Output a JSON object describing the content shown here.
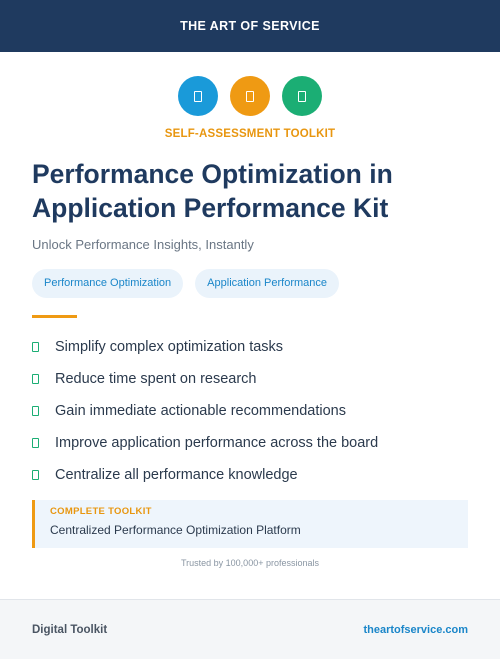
{
  "header": {
    "brand": "THE ART OF SERVICE"
  },
  "icons": [
    {
      "name": "document-icon",
      "color": "#1a9ad9"
    },
    {
      "name": "document-icon",
      "color": "#ef9a13"
    },
    {
      "name": "document-icon",
      "color": "#1bae74"
    }
  ],
  "kicker": "SELF-ASSESSMENT TOOLKIT",
  "title": "Performance Optimization in Application Performance Kit",
  "subtitle": "Unlock Performance Insights, Instantly",
  "tags": [
    "Performance Optimization",
    "Application Performance"
  ],
  "benefits": [
    "Simplify complex optimization tasks",
    "Reduce time spent on research",
    "Gain immediate actionable recommendations",
    "Improve application performance across the board",
    "Centralize all performance knowledge"
  ],
  "callout": {
    "label": "COMPLETE TOOLKIT",
    "text": "Centralized Performance Optimization Platform"
  },
  "trusted": "Trusted by 100,000+ professionals",
  "footer": {
    "left": "Digital Toolkit",
    "right": "theartofservice.com"
  },
  "colors": {
    "navy": "#1f3a5f",
    "orange": "#ef9a13",
    "blue": "#1a9ad9",
    "green": "#1bae74"
  }
}
